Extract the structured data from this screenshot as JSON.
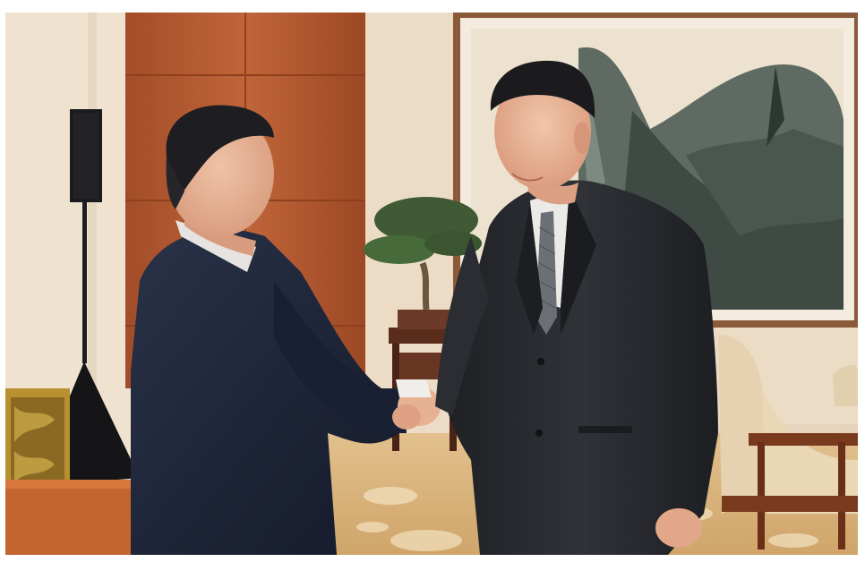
{
  "image": {
    "subject": "photo",
    "colors": {
      "wall": "#eadbc6",
      "wood_panel": "#b55d33",
      "carpet": "#d9b47c",
      "suit_left": "#1b2235",
      "suit_right": "#24262b",
      "painting_frame": "#8a5a3a",
      "chair_fabric": "#e6d2b0"
    }
  }
}
